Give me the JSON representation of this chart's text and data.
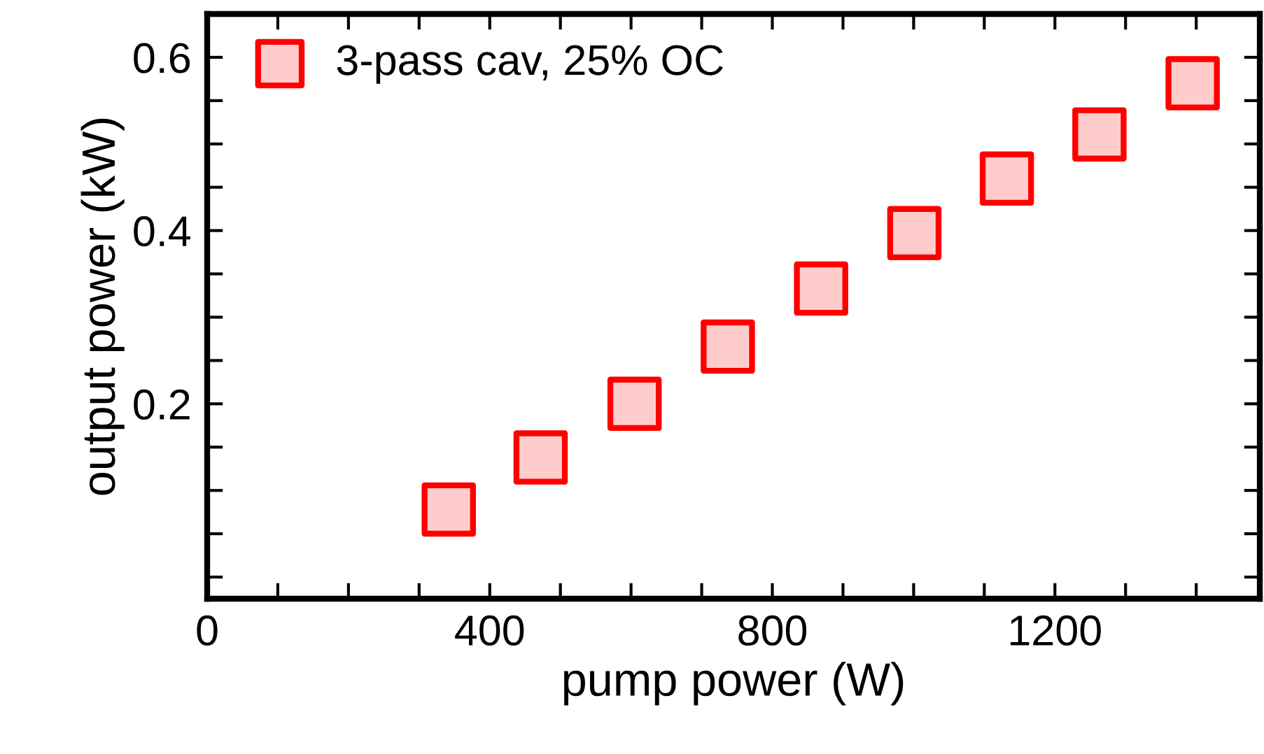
{
  "chart_data": {
    "type": "scatter",
    "xlabel": "pump power (W)",
    "ylabel": "output power (kW)",
    "x": [
      342,
      472,
      605,
      737,
      869,
      1001,
      1132,
      1263,
      1395
    ],
    "series": [
      {
        "name": "3-pass cav, 25% OC",
        "color": "#ff0000",
        "values": [
          0.078,
          0.138,
          0.2,
          0.266,
          0.333,
          0.397,
          0.46,
          0.511,
          0.57
        ]
      }
    ],
    "marker": "square",
    "legend": "top left",
    "grid": false,
    "xlim": [
      0,
      1490
    ],
    "xticks": [
      0,
      {
        "value": 100,
        "label": null
      },
      {
        "value": 200,
        "label": null
      },
      {
        "value": 300,
        "label": null
      },
      400,
      {
        "value": 500,
        "label": null
      },
      {
        "value": 600,
        "label": null
      },
      {
        "value": 700,
        "label": null
      },
      800,
      {
        "value": 900,
        "label": null
      },
      {
        "value": 1000,
        "label": null
      },
      {
        "value": 1100,
        "label": null
      },
      1200,
      {
        "value": 1300,
        "label": null
      },
      {
        "value": 1400,
        "label": null
      }
    ],
    "ylim": [
      -0.025,
      0.65
    ],
    "yticks": [
      {
        "value": 0,
        "label": null
      },
      {
        "value": 0.05,
        "label": null
      },
      {
        "value": 0.1,
        "label": null
      },
      {
        "value": 0.15,
        "label": null
      },
      0.2,
      {
        "value": 0.25,
        "label": null
      },
      {
        "value": 0.3,
        "label": null
      },
      {
        "value": 0.35,
        "label": null
      },
      0.4,
      {
        "value": 0.45,
        "label": null
      },
      {
        "value": 0.5,
        "label": null
      },
      {
        "value": 0.55,
        "label": null
      },
      0.6
    ]
  }
}
